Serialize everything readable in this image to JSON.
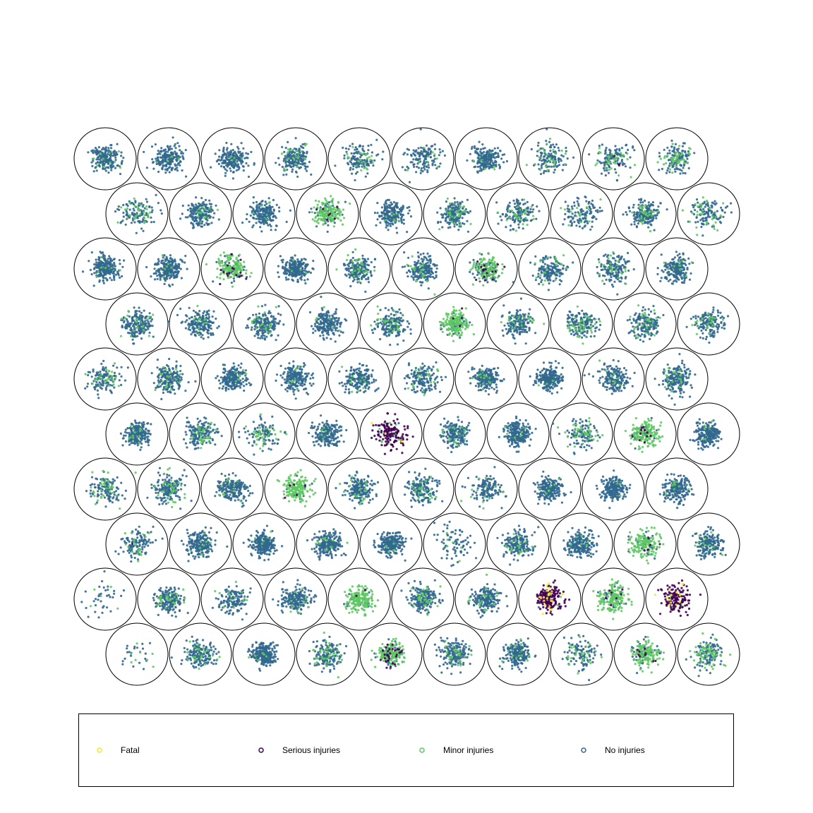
{
  "chart_data": {
    "type": "scatter",
    "description_kind": "hexagonal grid of circular scatter clusters, one per cell, points colored by injury severity",
    "grid": {
      "rows": 10,
      "columns": 10,
      "cells": 100
    },
    "series": [
      {
        "name": "Fatal",
        "color": "#fde725"
      },
      {
        "name": "Serious injuries",
        "color": "#440154"
      },
      {
        "name": "Minor injuries",
        "color": "#5ec962"
      },
      {
        "name": "No injuries",
        "color": "#31688e"
      }
    ],
    "legend": {
      "position": "bottom",
      "items": [
        "Fatal",
        "Serious injuries",
        "Minor injuries",
        "No injuries"
      ]
    },
    "axes": "off",
    "grid_lines": false,
    "cells": [
      [
        [
          0,
          0,
          0.06,
          1
        ],
        [
          0,
          0,
          0.04,
          1
        ],
        [
          0,
          0,
          0.03,
          1
        ],
        [
          0,
          0,
          0.1,
          1
        ],
        [
          0,
          0,
          0.22,
          0.7
        ],
        [
          0,
          0,
          0.06,
          0.7
        ],
        [
          0,
          0,
          0.03,
          1
        ],
        [
          0,
          0,
          0.25,
          0.7
        ],
        [
          0,
          0.02,
          0.22,
          0.7
        ],
        [
          0,
          0,
          0.28,
          0.8
        ]
      ],
      [
        [
          0,
          0,
          0.2,
          0.7
        ],
        [
          0,
          0,
          0.08,
          1
        ],
        [
          0,
          0,
          0.04,
          1
        ],
        [
          0,
          0.05,
          0.7,
          1
        ],
        [
          0,
          0,
          0.05,
          1
        ],
        [
          0,
          0,
          0.15,
          1
        ],
        [
          0,
          0,
          0.15,
          0.8
        ],
        [
          0,
          0,
          0.15,
          0.6
        ],
        [
          0,
          0,
          0.12,
          1
        ],
        [
          0,
          0,
          0.2,
          0.7
        ]
      ],
      [
        [
          0,
          0,
          0.03,
          1.2
        ],
        [
          0,
          0,
          0.03,
          1.2
        ],
        [
          0,
          0.06,
          0.65,
          1
        ],
        [
          0,
          0,
          0.02,
          1.2
        ],
        [
          0,
          0,
          0.12,
          1
        ],
        [
          0,
          0,
          0.1,
          1
        ],
        [
          0,
          0.08,
          0.55,
          1
        ],
        [
          0,
          0,
          0.12,
          0.8
        ],
        [
          0,
          0,
          0.1,
          0.8
        ],
        [
          0,
          0,
          0.05,
          1
        ]
      ],
      [
        [
          0,
          0,
          0.12,
          1
        ],
        [
          0,
          0,
          0.04,
          1
        ],
        [
          0,
          0,
          0.12,
          1
        ],
        [
          0,
          0,
          0.05,
          1
        ],
        [
          0,
          0,
          0.15,
          0.9
        ],
        [
          0,
          0.02,
          0.8,
          1.1
        ],
        [
          0,
          0,
          0.08,
          0.9
        ],
        [
          0,
          0,
          0.22,
          0.9
        ],
        [
          0,
          0,
          0.15,
          0.9
        ],
        [
          0,
          0,
          0.12,
          0.8
        ]
      ],
      [
        [
          0,
          0,
          0.2,
          0.7
        ],
        [
          0,
          0,
          0.1,
          1
        ],
        [
          0,
          0,
          0.04,
          1.1
        ],
        [
          0,
          0,
          0.04,
          1
        ],
        [
          0,
          0,
          0.06,
          0.9
        ],
        [
          0,
          0,
          0.15,
          0.8
        ],
        [
          0,
          0,
          0.04,
          1
        ],
        [
          0,
          0,
          0.02,
          1.2
        ],
        [
          0,
          0,
          0.06,
          0.9
        ],
        [
          0,
          0,
          0.08,
          1
        ]
      ],
      [
        [
          0,
          0,
          0.04,
          1.1
        ],
        [
          0,
          0,
          0.12,
          0.9
        ],
        [
          0,
          0,
          0.3,
          0.6
        ],
        [
          0,
          0,
          0.04,
          1
        ],
        [
          0.03,
          0.85,
          0.1,
          0.8
        ],
        [
          0,
          0,
          0.06,
          1
        ],
        [
          0,
          0,
          0.04,
          1.1
        ],
        [
          0,
          0,
          0.3,
          0.7
        ],
        [
          0,
          0.06,
          0.75,
          1
        ],
        [
          0,
          0,
          0.03,
          1.2
        ]
      ],
      [
        [
          0,
          0,
          0.25,
          0.7
        ],
        [
          0,
          0,
          0.2,
          0.9
        ],
        [
          0,
          0,
          0.06,
          1
        ],
        [
          0,
          0.02,
          0.85,
          0.9
        ],
        [
          0,
          0,
          0.1,
          1
        ],
        [
          0,
          0,
          0.15,
          0.9
        ],
        [
          0,
          0,
          0.12,
          0.7
        ],
        [
          0,
          0,
          0.03,
          1.1
        ],
        [
          0,
          0,
          0.04,
          1.1
        ],
        [
          0,
          0,
          0.06,
          1
        ]
      ],
      [
        [
          0,
          0.03,
          0.12,
          0.7
        ],
        [
          0,
          0,
          0.05,
          1
        ],
        [
          0,
          0,
          0.03,
          1.2
        ],
        [
          0,
          0,
          0.04,
          1.1
        ],
        [
          0,
          0,
          0.02,
          1.2
        ],
        [
          0,
          0,
          0.1,
          0.4
        ],
        [
          0,
          0,
          0.08,
          0.9
        ],
        [
          0,
          0,
          0.03,
          1.1
        ],
        [
          0,
          0.03,
          0.75,
          0.9
        ],
        [
          0,
          0,
          0.05,
          1
        ]
      ],
      [
        [
          0,
          0,
          0.1,
          0.2
        ],
        [
          0,
          0,
          0.18,
          1
        ],
        [
          0,
          0,
          0.12,
          0.7
        ],
        [
          0,
          0,
          0.05,
          1
        ],
        [
          0,
          0.02,
          0.85,
          1
        ],
        [
          0,
          0,
          0.12,
          1
        ],
        [
          0,
          0,
          0.1,
          1
        ],
        [
          0.12,
          0.83,
          0.03,
          1
        ],
        [
          0,
          0.03,
          0.82,
          1
        ],
        [
          0.08,
          0.85,
          0.04,
          0.8
        ]
      ],
      [
        [
          0,
          0,
          0.2,
          0.15
        ],
        [
          0,
          0,
          0.15,
          0.9
        ],
        [
          0,
          0,
          0.02,
          1.3
        ],
        [
          0,
          0,
          0.2,
          0.9
        ],
        [
          0,
          0.12,
          0.65,
          1.1
        ],
        [
          0,
          0,
          0.15,
          0.9
        ],
        [
          0,
          0,
          0.06,
          1
        ],
        [
          0,
          0,
          0.2,
          0.6
        ],
        [
          0,
          0.05,
          0.7,
          1
        ],
        [
          0,
          0,
          0.3,
          0.8
        ]
      ]
    ]
  }
}
